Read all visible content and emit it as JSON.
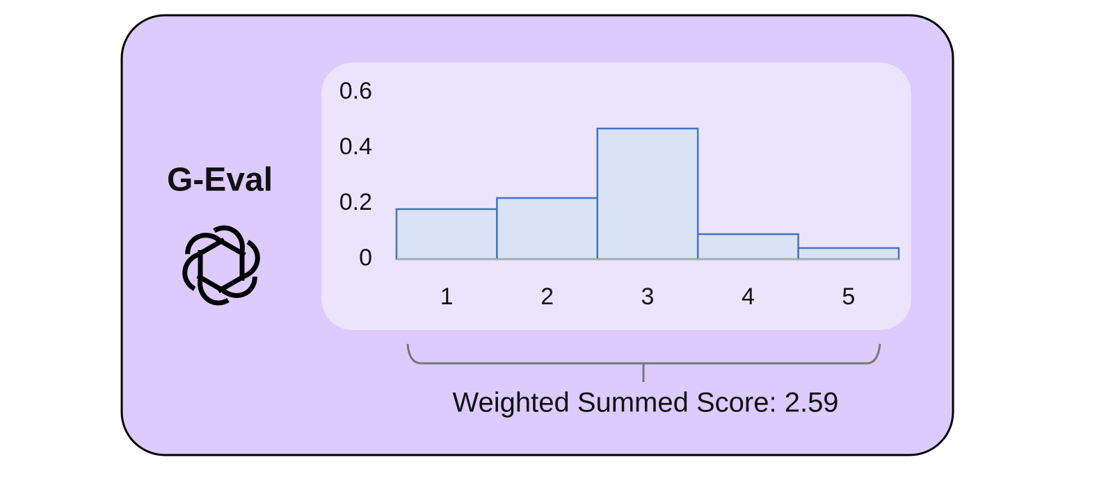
{
  "label": "G-Eval",
  "caption": "Weighted Summed Score: 2.59",
  "chart_data": {
    "type": "bar",
    "categories": [
      "1",
      "2",
      "3",
      "4",
      "5"
    ],
    "values": [
      0.18,
      0.22,
      0.47,
      0.09,
      0.04
    ],
    "color": "#dae3f3",
    "edgecolor": "#4472c4",
    "ylim": [
      0,
      0.6
    ],
    "yticks": [
      0,
      0.2,
      0.4,
      0.6
    ],
    "grid": false
  }
}
